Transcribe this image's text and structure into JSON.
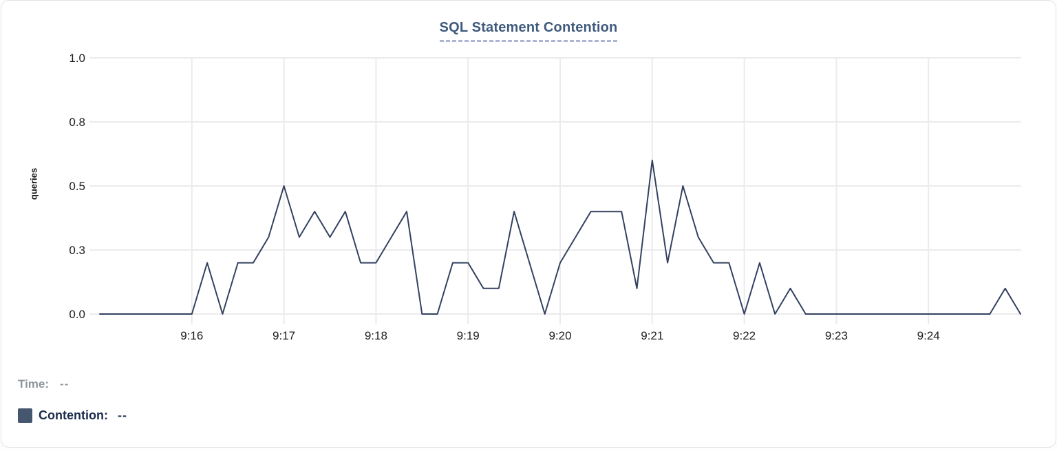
{
  "title": "SQL Statement Contention",
  "readout": {
    "time_label": "Time:",
    "time_value": "--",
    "series_label": "Contention:",
    "series_value": "--"
  },
  "colors": {
    "title": "#3f5a7c",
    "title_underline": "#aeb4d4",
    "line": "#334160",
    "legend_swatch": "#46566e",
    "grid": "#ebebeb",
    "axis_text": "#1d1d1f",
    "time_label": "#8e949c",
    "contention_label": "#1b2b4d"
  },
  "chart_data": {
    "type": "line",
    "title": "SQL Statement Contention",
    "xlabel": "",
    "ylabel": "queries",
    "series_name": "Contention",
    "ylim": [
      0,
      1.0
    ],
    "grid": true,
    "y_ticks": [
      {
        "label": "1.0",
        "value": 1.0
      },
      {
        "label": "0.8",
        "value": 0.75
      },
      {
        "label": "0.5",
        "value": 0.5
      },
      {
        "label": "0.3",
        "value": 0.25
      },
      {
        "label": "0.0",
        "value": 0.0
      }
    ],
    "x_ticks": [
      "9:16",
      "9:17",
      "9:18",
      "9:19",
      "9:20",
      "9:21",
      "9:22",
      "9:23",
      "9:24"
    ],
    "x_start": "9:15:00",
    "x_end": "9:25:00",
    "x_interval_seconds": 10,
    "x": [
      "9:15:00",
      "9:15:10",
      "9:15:20",
      "9:15:30",
      "9:15:40",
      "9:15:50",
      "9:16:00",
      "9:16:10",
      "9:16:20",
      "9:16:30",
      "9:16:40",
      "9:16:50",
      "9:17:00",
      "9:17:10",
      "9:17:20",
      "9:17:30",
      "9:17:40",
      "9:17:50",
      "9:18:00",
      "9:18:10",
      "9:18:20",
      "9:18:30",
      "9:18:40",
      "9:18:50",
      "9:19:00",
      "9:19:10",
      "9:19:20",
      "9:19:30",
      "9:19:40",
      "9:19:50",
      "9:20:00",
      "9:20:10",
      "9:20:20",
      "9:20:30",
      "9:20:40",
      "9:20:50",
      "9:21:00",
      "9:21:10",
      "9:21:20",
      "9:21:30",
      "9:21:40",
      "9:21:50",
      "9:22:00",
      "9:22:10",
      "9:22:20",
      "9:22:30",
      "9:22:40",
      "9:22:50",
      "9:23:00",
      "9:23:10",
      "9:23:20",
      "9:23:30",
      "9:23:40",
      "9:23:50",
      "9:24:00",
      "9:24:10",
      "9:24:20",
      "9:24:30",
      "9:24:40",
      "9:24:50",
      "9:25:00"
    ],
    "values": [
      0,
      0,
      0,
      0,
      0,
      0,
      0,
      0.2,
      0,
      0.2,
      0.2,
      0.3,
      0.5,
      0.3,
      0.4,
      0.3,
      0.4,
      0.2,
      0.2,
      0.3,
      0.4,
      0,
      0,
      0.2,
      0.2,
      0.1,
      0.1,
      0.4,
      0.2,
      0,
      0.2,
      0.3,
      0.4,
      0.4,
      0.4,
      0.1,
      0.6,
      0.2,
      0.5,
      0.3,
      0.2,
      0.2,
      0,
      0.2,
      0,
      0.1,
      0,
      0,
      0,
      0,
      0,
      0,
      0,
      0,
      0,
      0,
      0,
      0,
      0,
      0.1,
      0
    ]
  }
}
